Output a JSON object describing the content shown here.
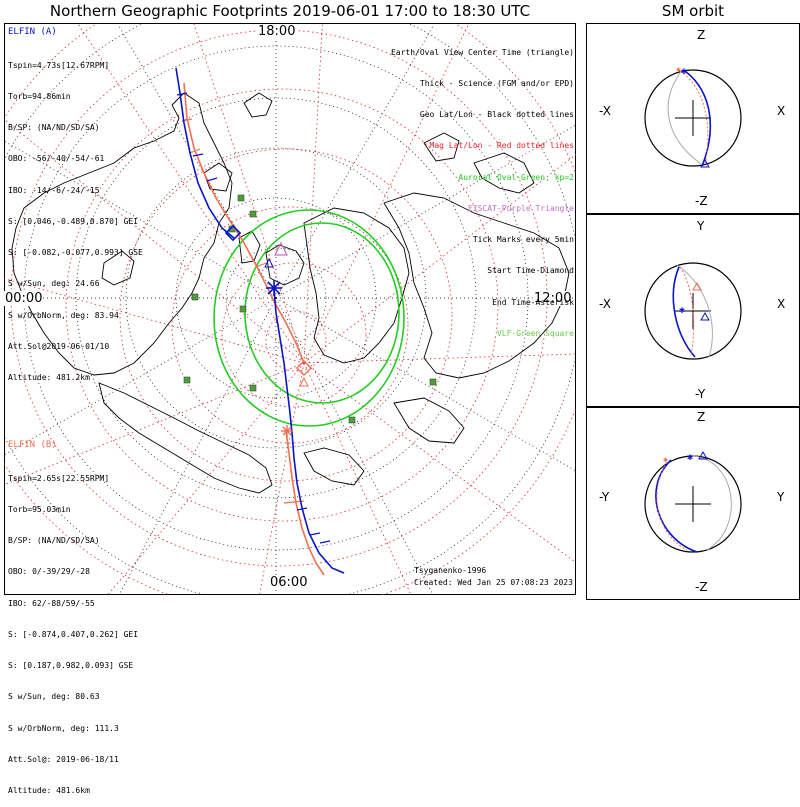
{
  "title": "Northern Geographic Footprints 2019-06-01 17:00 to 18:30 UTC",
  "sm_title": "SM orbit",
  "clock": {
    "top": "18:00",
    "left": "00:00",
    "right": "12:00",
    "bottom": "06:00"
  },
  "elfin_a": {
    "name": "ELFIN (A)",
    "lines": [
      "Tspin=4.73s[12.67RPM]",
      "Torb=94.86min",
      "B/SP: (NA/ND/SD/SA)",
      "OBO: -56/-40/-54/-61",
      "IBO: -14/-6/-24/-15",
      "S: [0.046,-0.489,0.870] GEI",
      "S: [-0.082,-0.077,0.993] GSE",
      "S w/Sun, deg: 24.66",
      "S w/OrbNorm, deg: 83.94",
      "Att.Sol@2019-06-01/10",
      "Altitude: 481.2km"
    ]
  },
  "elfin_b": {
    "name": "ELFIN (B)",
    "lines": [
      "Tspin=2.65s[22.55RPM]",
      "Torb=95.03min",
      "B/SP: (NA/ND/SD/SA)",
      "OBO: 0/-39/29/-28",
      "IBO: 62/-88/59/-55",
      "S: [-0.874,0.407,0.262] GEI",
      "S: [0.187,0.982,0.093] GSE",
      "S w/Sun, deg: 80.63",
      "S w/OrbNorm, deg: 111.3",
      "Att.Sol@: 2019-06-18/11",
      "Altitude: 481.6km"
    ]
  },
  "legend": [
    {
      "text": "Earth/Oval View Center Time (triangle)",
      "color": "#000000"
    },
    {
      "text": "Thick - Science (FGM and/or EPD)",
      "color": "#000000"
    },
    {
      "text": "Geo Lat/Lon - Black dotted lines",
      "color": "#000000"
    },
    {
      "text": "Mag Lat/Lon - Red dotted lines",
      "color": "#e8202a"
    },
    {
      "text": "Auroral Oval-Green, kp=2",
      "color": "#22cc22"
    },
    {
      "text": "EISCAT-Purple Triangle",
      "color": "#c070c0"
    },
    {
      "text": "Tick Marks every 5min",
      "color": "#000000"
    },
    {
      "text": "Start Time-Diamond",
      "color": "#000000"
    },
    {
      "text": "End Time-Asterisk",
      "color": "#000000"
    },
    {
      "text": "VLF-Green Square",
      "color": "#66cc44"
    }
  ],
  "credits": {
    "model": "Tsyganenko-1996",
    "created": "Created: Wed Jan 25 07:08:23 2023"
  },
  "sm_panels": [
    {
      "top": "Z",
      "bottom": "-Z",
      "left": "-X",
      "right": "X"
    },
    {
      "top": "Y",
      "bottom": "-Y",
      "left": "-X",
      "right": "X"
    },
    {
      "top": "Z",
      "bottom": "-Z",
      "left": "-Y",
      "right": "Y"
    }
  ],
  "colors": {
    "elfin_a": "#0a14c8",
    "elfin_b": "#f07050",
    "mag_grid": "#e8202a",
    "geo_grid": "#000000",
    "oval": "#22cc22",
    "vlf": "#559944",
    "eiscat": "#c070c0"
  }
}
